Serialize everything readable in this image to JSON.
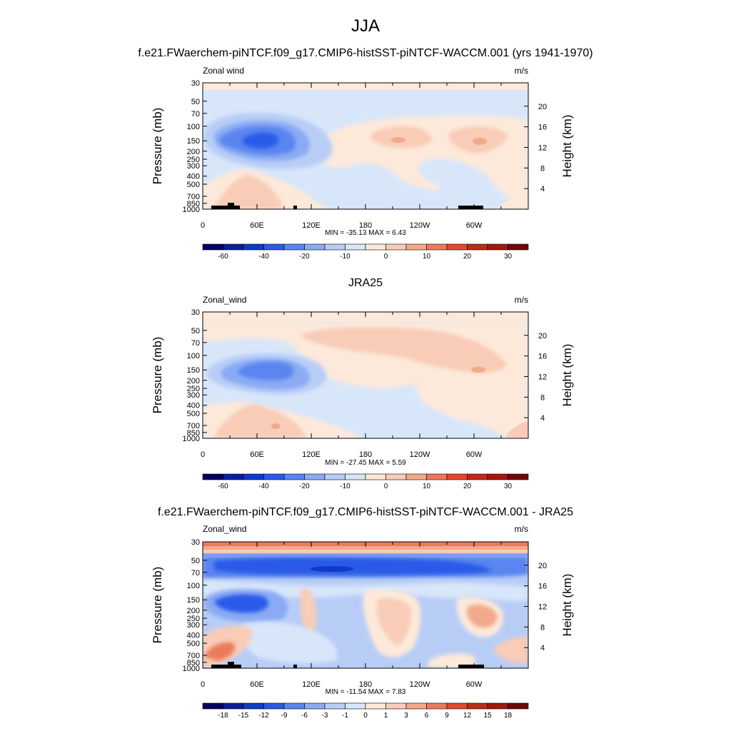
{
  "figure": {
    "title": "JJA"
  },
  "panels": [
    {
      "title": "f.e21.FWaerchem-piNTCF.f09_g17.CMIP6-histSST-piNTCF-WACCM.001 (yrs 1941-1970)",
      "left_label": "Zonal wind",
      "right_label": "m/s",
      "stats": "MIN = -35.13  MAX =   6.43",
      "colorbar_labels": [
        "-60",
        "-40",
        "-20",
        "-10",
        "0",
        "10",
        "20",
        "30"
      ],
      "show_land": true
    },
    {
      "title": "JRA25",
      "left_label": "Zonal_wind",
      "right_label": "m/s",
      "stats": "MIN = -27.45  MAX =   5.59",
      "colorbar_labels": [
        "-60",
        "-40",
        "-20",
        "-10",
        "0",
        "10",
        "20",
        "30"
      ],
      "show_land": false
    },
    {
      "title": "f.e21.FWaerchem-piNTCF.f09_g17.CMIP6-histSST-piNTCF-WACCM.001 - JRA25",
      "left_label": "Zonal_wind",
      "right_label": "m/s",
      "stats": "MIN = -11.54  MAX =   7.83",
      "colorbar_labels": [
        "-18",
        "-15",
        "-12",
        "-9",
        "-6",
        "-3",
        "-1",
        "0",
        "1",
        "3",
        "6",
        "9",
        "12",
        "15",
        "18"
      ],
      "show_land": true
    }
  ],
  "axes": {
    "ylabel_left": "Pressure (mb)",
    "ylabel_right": "Height (km)",
    "x_ticks": [
      "0",
      "60E",
      "120E",
      "180",
      "120W",
      "60W"
    ],
    "pressure_ticks": [
      "30",
      "50",
      "70",
      "100",
      "150",
      "200",
      "250",
      "300",
      "400",
      "500",
      "700",
      "850",
      "1000"
    ],
    "height_ticks": [
      "4",
      "8",
      "12",
      "16",
      "20"
    ]
  },
  "colors": {
    "ramp": [
      "#000066",
      "#0a1f9c",
      "#0f3acb",
      "#2a5ae8",
      "#5a85f0",
      "#8aaaf4",
      "#b8cdf6",
      "#d8e6fa",
      "#fde9da",
      "#f8ccb6",
      "#f2a88c",
      "#ec7a5a",
      "#e04a2a",
      "#c02a18",
      "#a01810",
      "#700808"
    ]
  },
  "chart_data": [
    {
      "type": "heatmap",
      "title": "f.e21.FWaerchem-piNTCF.f09_g17.CMIP6-histSST-piNTCF-WACCM.001 (yrs 1941-1970)",
      "x_axis": "longitude",
      "y_axis": "pressure (mb), log scale",
      "ylim": [
        1000,
        30
      ],
      "units": "m/s",
      "min": -35.13,
      "max": 6.43,
      "levels": [
        -70,
        -60,
        -50,
        -40,
        -30,
        -20,
        -15,
        -10,
        -5,
        0,
        5,
        10,
        15,
        20,
        25,
        30,
        35
      ]
    },
    {
      "type": "heatmap",
      "title": "JRA25",
      "x_axis": "longitude",
      "y_axis": "pressure (mb), log scale",
      "ylim": [
        1000,
        30
      ],
      "units": "m/s",
      "min": -27.45,
      "max": 5.59,
      "levels": [
        -70,
        -60,
        -50,
        -40,
        -30,
        -20,
        -15,
        -10,
        -5,
        0,
        5,
        10,
        15,
        20,
        25,
        30,
        35
      ]
    },
    {
      "type": "heatmap",
      "title": "f.e21.FWaerchem-piNTCF.f09_g17.CMIP6-histSST-piNTCF-WACCM.001 - JRA25",
      "x_axis": "longitude",
      "y_axis": "pressure (mb), log scale",
      "ylim": [
        1000,
        30
      ],
      "units": "m/s",
      "min": -11.54,
      "max": 7.83,
      "levels": [
        -18,
        -15,
        -12,
        -9,
        -6,
        -3,
        -1,
        0,
        1,
        3,
        6,
        9,
        12,
        15,
        18
      ]
    }
  ]
}
